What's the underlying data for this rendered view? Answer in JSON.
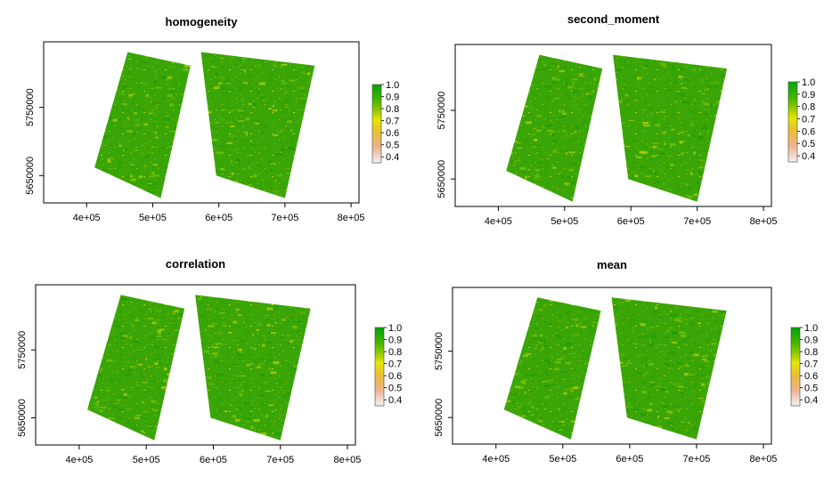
{
  "colors": {
    "raster_base": "#3aa506",
    "raster_dark": "#1f9a04",
    "raster_light": "#7cc40a",
    "raster_yellow": "#b7d10f",
    "axis": "#000000"
  },
  "chart_data": [
    {
      "type": "heatmap",
      "title": "homogeneity",
      "xlabel": "",
      "ylabel": "",
      "xlim": [
        335000,
        812000
      ],
      "ylim": [
        5610000,
        5846000
      ],
      "x_ticks": [
        400000,
        500000,
        600000,
        700000,
        800000
      ],
      "x_tick_labels": [
        "4e+05",
        "5e+05",
        "6e+05",
        "7e+05",
        "8e+05"
      ],
      "y_ticks": [
        5650000,
        5750000
      ],
      "y_tick_labels": [
        "5650000",
        "5750000"
      ],
      "legend_placement": "right",
      "legend_ticks": [
        1.0,
        0.9,
        0.8,
        0.7,
        0.6,
        0.5,
        0.4
      ],
      "legend_tick_labels": [
        "1.0",
        "0.9",
        "0.8",
        "0.7",
        "0.6",
        "0.5",
        "0.4"
      ],
      "legend_range": [
        0.35,
        1.0
      ],
      "scenes": [
        {
          "corners": [
            [
              462000,
              5831000
            ],
            [
              557000,
              5811000
            ],
            [
              512000,
              5617000
            ],
            [
              412000,
              5662000
            ]
          ]
        },
        {
          "corners": [
            [
              573000,
              5831000
            ],
            [
              745000,
              5811000
            ],
            [
              700000,
              5617000
            ],
            [
              596000,
              5650000
            ]
          ]
        }
      ],
      "mean_value": 0.88
    },
    {
      "type": "heatmap",
      "title": "second_moment",
      "xlabel": "",
      "ylabel": "",
      "xlim": [
        335000,
        812000
      ],
      "ylim": [
        5610000,
        5846000
      ],
      "x_ticks": [
        400000,
        500000,
        600000,
        700000,
        800000
      ],
      "x_tick_labels": [
        "4e+05",
        "5e+05",
        "6e+05",
        "7e+05",
        "8e+05"
      ],
      "y_ticks": [
        5650000,
        5750000
      ],
      "y_tick_labels": [
        "5650000",
        "5750000"
      ],
      "legend_placement": "right",
      "legend_ticks": [
        1.0,
        0.9,
        0.8,
        0.7,
        0.6,
        0.5,
        0.4
      ],
      "legend_tick_labels": [
        "1.0",
        "0.9",
        "0.8",
        "0.7",
        "0.6",
        "0.5",
        "0.4"
      ],
      "legend_range": [
        0.35,
        1.0
      ],
      "scenes": [
        {
          "corners": [
            [
              462000,
              5831000
            ],
            [
              557000,
              5811000
            ],
            [
              512000,
              5617000
            ],
            [
              412000,
              5662000
            ]
          ]
        },
        {
          "corners": [
            [
              573000,
              5831000
            ],
            [
              745000,
              5811000
            ],
            [
              700000,
              5617000
            ],
            [
              596000,
              5650000
            ]
          ]
        }
      ],
      "mean_value": 0.87
    },
    {
      "type": "heatmap",
      "title": "correlation",
      "xlabel": "",
      "ylabel": "",
      "xlim": [
        335000,
        812000
      ],
      "ylim": [
        5610000,
        5846000
      ],
      "x_ticks": [
        400000,
        500000,
        600000,
        700000,
        800000
      ],
      "x_tick_labels": [
        "4e+05",
        "5e+05",
        "6e+05",
        "7e+05",
        "8e+05"
      ],
      "y_ticks": [
        5650000,
        5750000
      ],
      "y_tick_labels": [
        "5650000",
        "5750000"
      ],
      "legend_placement": "right",
      "legend_ticks": [
        1.0,
        0.9,
        0.8,
        0.7,
        0.6,
        0.5,
        0.4
      ],
      "legend_tick_labels": [
        "1.0",
        "0.9",
        "0.8",
        "0.7",
        "0.6",
        "0.5",
        "0.4"
      ],
      "legend_range": [
        0.35,
        1.0
      ],
      "scenes": [
        {
          "corners": [
            [
              462000,
              5831000
            ],
            [
              557000,
              5811000
            ],
            [
              512000,
              5617000
            ],
            [
              412000,
              5662000
            ]
          ]
        },
        {
          "corners": [
            [
              573000,
              5831000
            ],
            [
              745000,
              5811000
            ],
            [
              700000,
              5617000
            ],
            [
              596000,
              5650000
            ]
          ]
        }
      ],
      "mean_value": 0.88
    },
    {
      "type": "heatmap",
      "title": "mean",
      "xlabel": "",
      "ylabel": "",
      "xlim": [
        335000,
        812000
      ],
      "ylim": [
        5610000,
        5846000
      ],
      "x_ticks": [
        400000,
        500000,
        600000,
        700000,
        800000
      ],
      "x_tick_labels": [
        "4e+05",
        "5e+05",
        "6e+05",
        "7e+05",
        "8e+05"
      ],
      "y_ticks": [
        5650000,
        5750000
      ],
      "y_tick_labels": [
        "5650000",
        "5750000"
      ],
      "legend_placement": "right",
      "legend_ticks": [
        1.0,
        0.9,
        0.8,
        0.7,
        0.6,
        0.5,
        0.4
      ],
      "legend_tick_labels": [
        "1.0",
        "0.9",
        "0.8",
        "0.7",
        "0.6",
        "0.5",
        "0.4"
      ],
      "legend_range": [
        0.35,
        1.0
      ],
      "scenes": [
        {
          "corners": [
            [
              462000,
              5831000
            ],
            [
              557000,
              5811000
            ],
            [
              512000,
              5617000
            ],
            [
              412000,
              5662000
            ]
          ]
        },
        {
          "corners": [
            [
              573000,
              5831000
            ],
            [
              745000,
              5811000
            ],
            [
              700000,
              5617000
            ],
            [
              596000,
              5650000
            ]
          ]
        }
      ],
      "mean_value": 0.88
    }
  ]
}
